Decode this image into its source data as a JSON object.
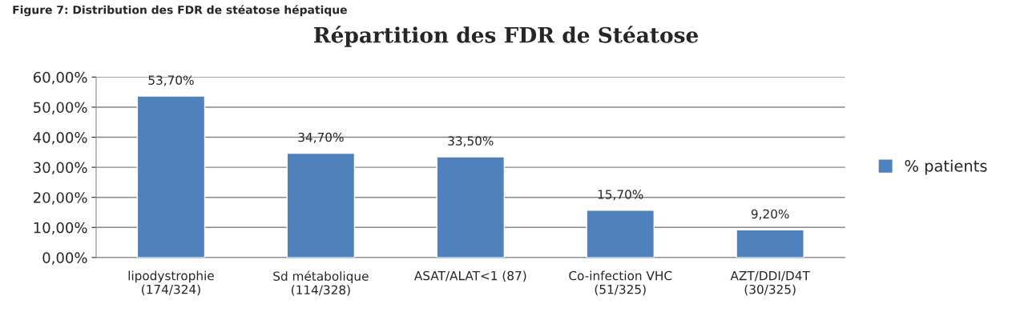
{
  "chart_data": {
    "type": "bar",
    "title": "Répartition des FDR de Stéatose",
    "annotations": [
      "Figure 7: Distribution des FDR de stéatose hépatique"
    ],
    "categories": [
      "lipodystrophie\n(174/324)",
      "Sd métabolique\n(114/328)",
      "ASAT/ALAT<1 (87)",
      "Co-infection VHC\n(51/325)",
      "AZT/DDI/D4T\n(30/325)"
    ],
    "series": [
      {
        "name": "% patients",
        "color": "#4f81bd",
        "values": [
          53.7,
          34.7,
          33.5,
          15.7,
          9.2
        ],
        "value_labels": [
          "53,70%",
          "34,70%",
          "33,50%",
          "15,70%",
          "9,20%"
        ]
      }
    ],
    "ylim": [
      0,
      60
    ],
    "yticks": [
      {
        "value": 0,
        "label": "0,00%"
      },
      {
        "value": 10,
        "label": "10,00%"
      },
      {
        "value": 20,
        "label": "20,00%"
      },
      {
        "value": 30,
        "label": "30,00%"
      },
      {
        "value": 40,
        "label": "40,00%"
      },
      {
        "value": 50,
        "label": "50,00%"
      },
      {
        "value": 60,
        "label": "60,00%"
      }
    ],
    "grid": "y",
    "legend": "right"
  }
}
